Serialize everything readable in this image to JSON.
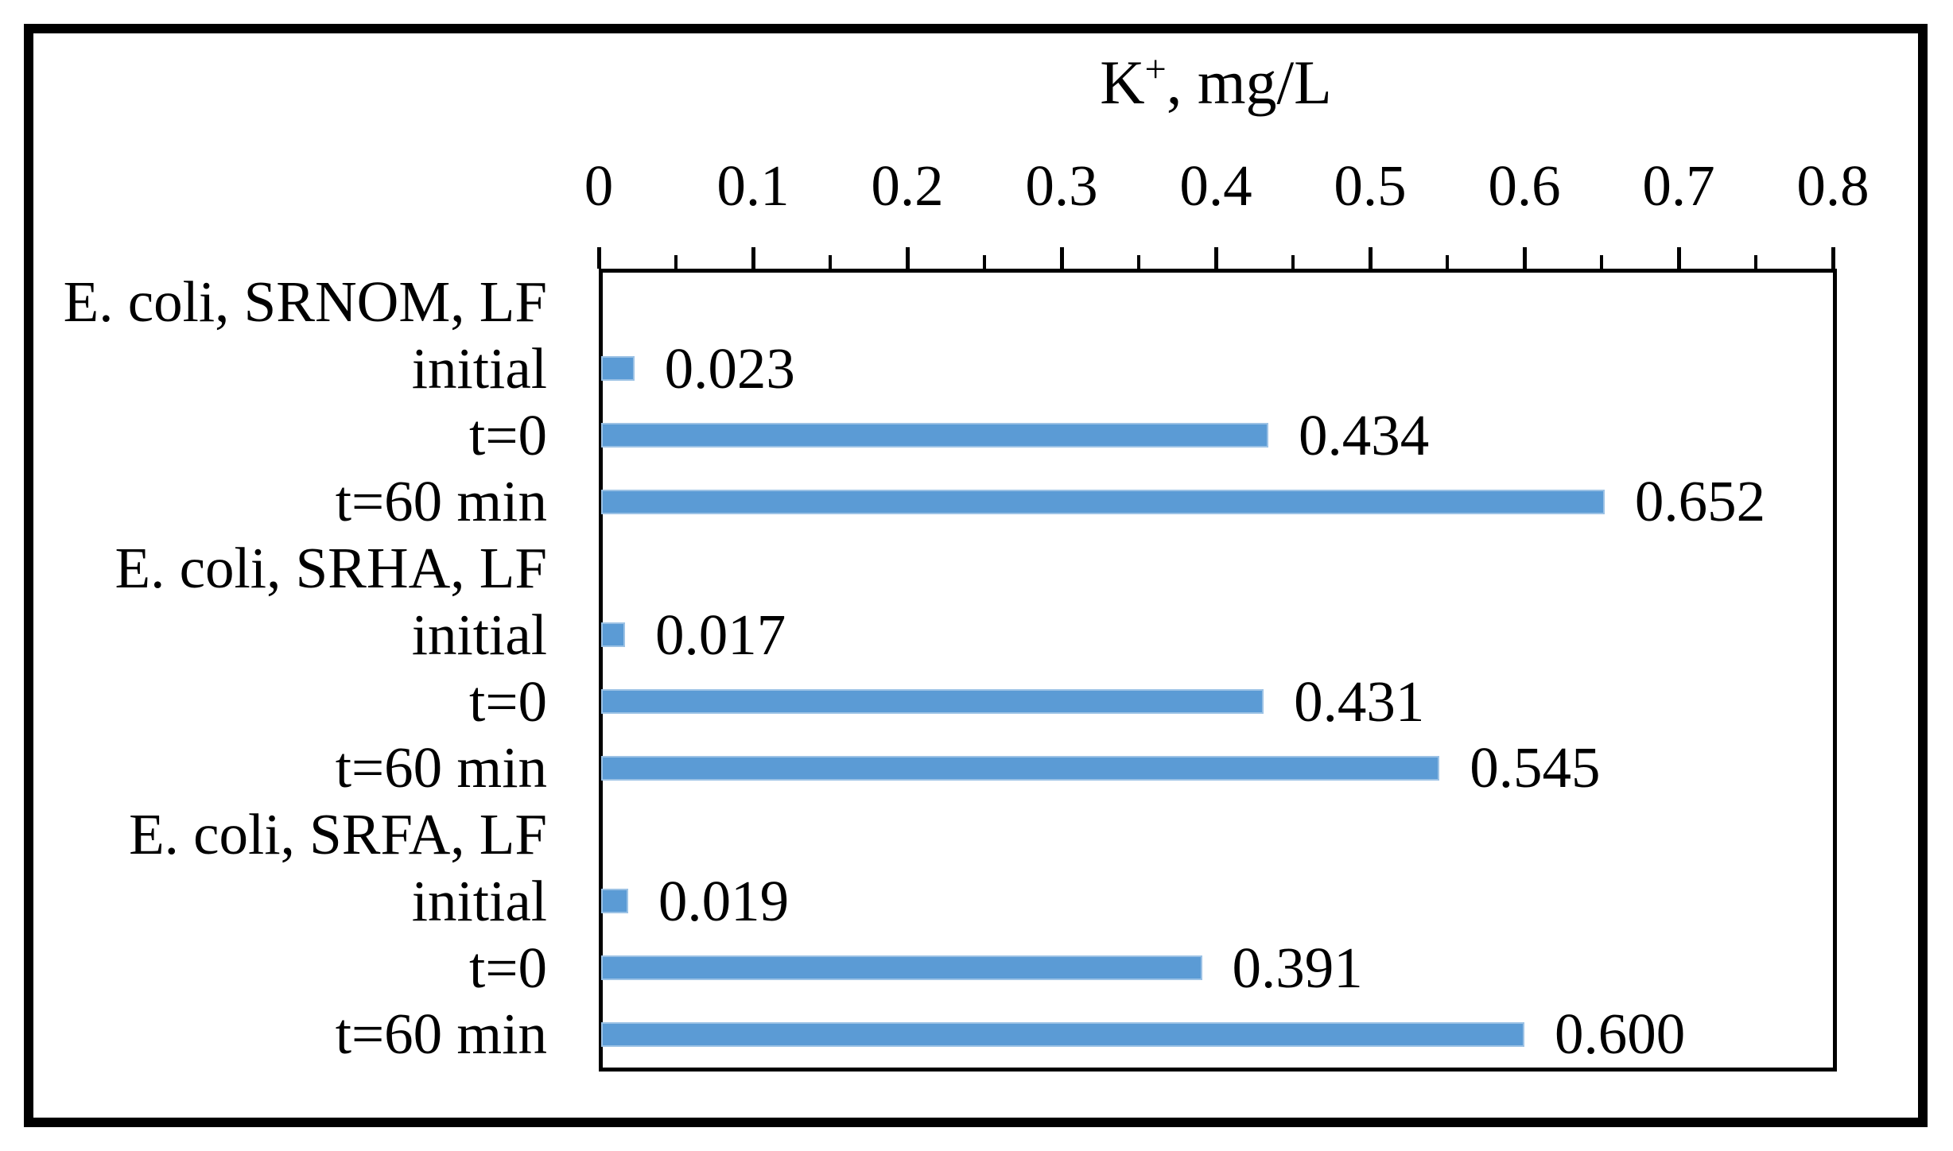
{
  "title": {
    "base": "K",
    "superscript": "+",
    "rest": ", mg/L"
  },
  "chart_data": {
    "type": "bar",
    "orientation": "horizontal",
    "title": "K+, mg/L",
    "xlabel": "K+, mg/L",
    "ylabel": "",
    "xlim": [
      0,
      0.8
    ],
    "grid": false,
    "legend": "none",
    "bar_color": "#5B9BD5",
    "bar_edge_color": "#9CC2E5",
    "axis_color": "#000000",
    "value_axis": {
      "min": 0,
      "max": 0.8,
      "major_step": 0.1,
      "minor_step": 0.05,
      "tick_labels": [
        "0",
        "0.1",
        "0.2",
        "0.3",
        "0.4",
        "0.5",
        "0.6",
        "0.7",
        "0.8"
      ]
    },
    "rows": [
      {
        "label": "E. coli, SRNOM, LF",
        "kind": "group-header",
        "value": null,
        "value_label": ""
      },
      {
        "label": "initial",
        "kind": "bar",
        "value": 0.023,
        "value_label": "0.023"
      },
      {
        "label": "t=0",
        "kind": "bar",
        "value": 0.434,
        "value_label": "0.434"
      },
      {
        "label": "t=60 min",
        "kind": "bar",
        "value": 0.652,
        "value_label": "0.652"
      },
      {
        "label": "E. coli, SRHA, LF",
        "kind": "group-header",
        "value": null,
        "value_label": ""
      },
      {
        "label": "initial",
        "kind": "bar",
        "value": 0.017,
        "value_label": "0.017"
      },
      {
        "label": "t=0",
        "kind": "bar",
        "value": 0.431,
        "value_label": "0.431"
      },
      {
        "label": "t=60 min",
        "kind": "bar",
        "value": 0.545,
        "value_label": "0.545"
      },
      {
        "label": "E. coli, SRFA, LF",
        "kind": "group-header",
        "value": null,
        "value_label": ""
      },
      {
        "label": "initial",
        "kind": "bar",
        "value": 0.019,
        "value_label": "0.019"
      },
      {
        "label": "t=0",
        "kind": "bar",
        "value": 0.391,
        "value_label": "0.391"
      },
      {
        "label": "t=60 min",
        "kind": "bar",
        "value": 0.6,
        "value_label": "0.600"
      }
    ]
  }
}
